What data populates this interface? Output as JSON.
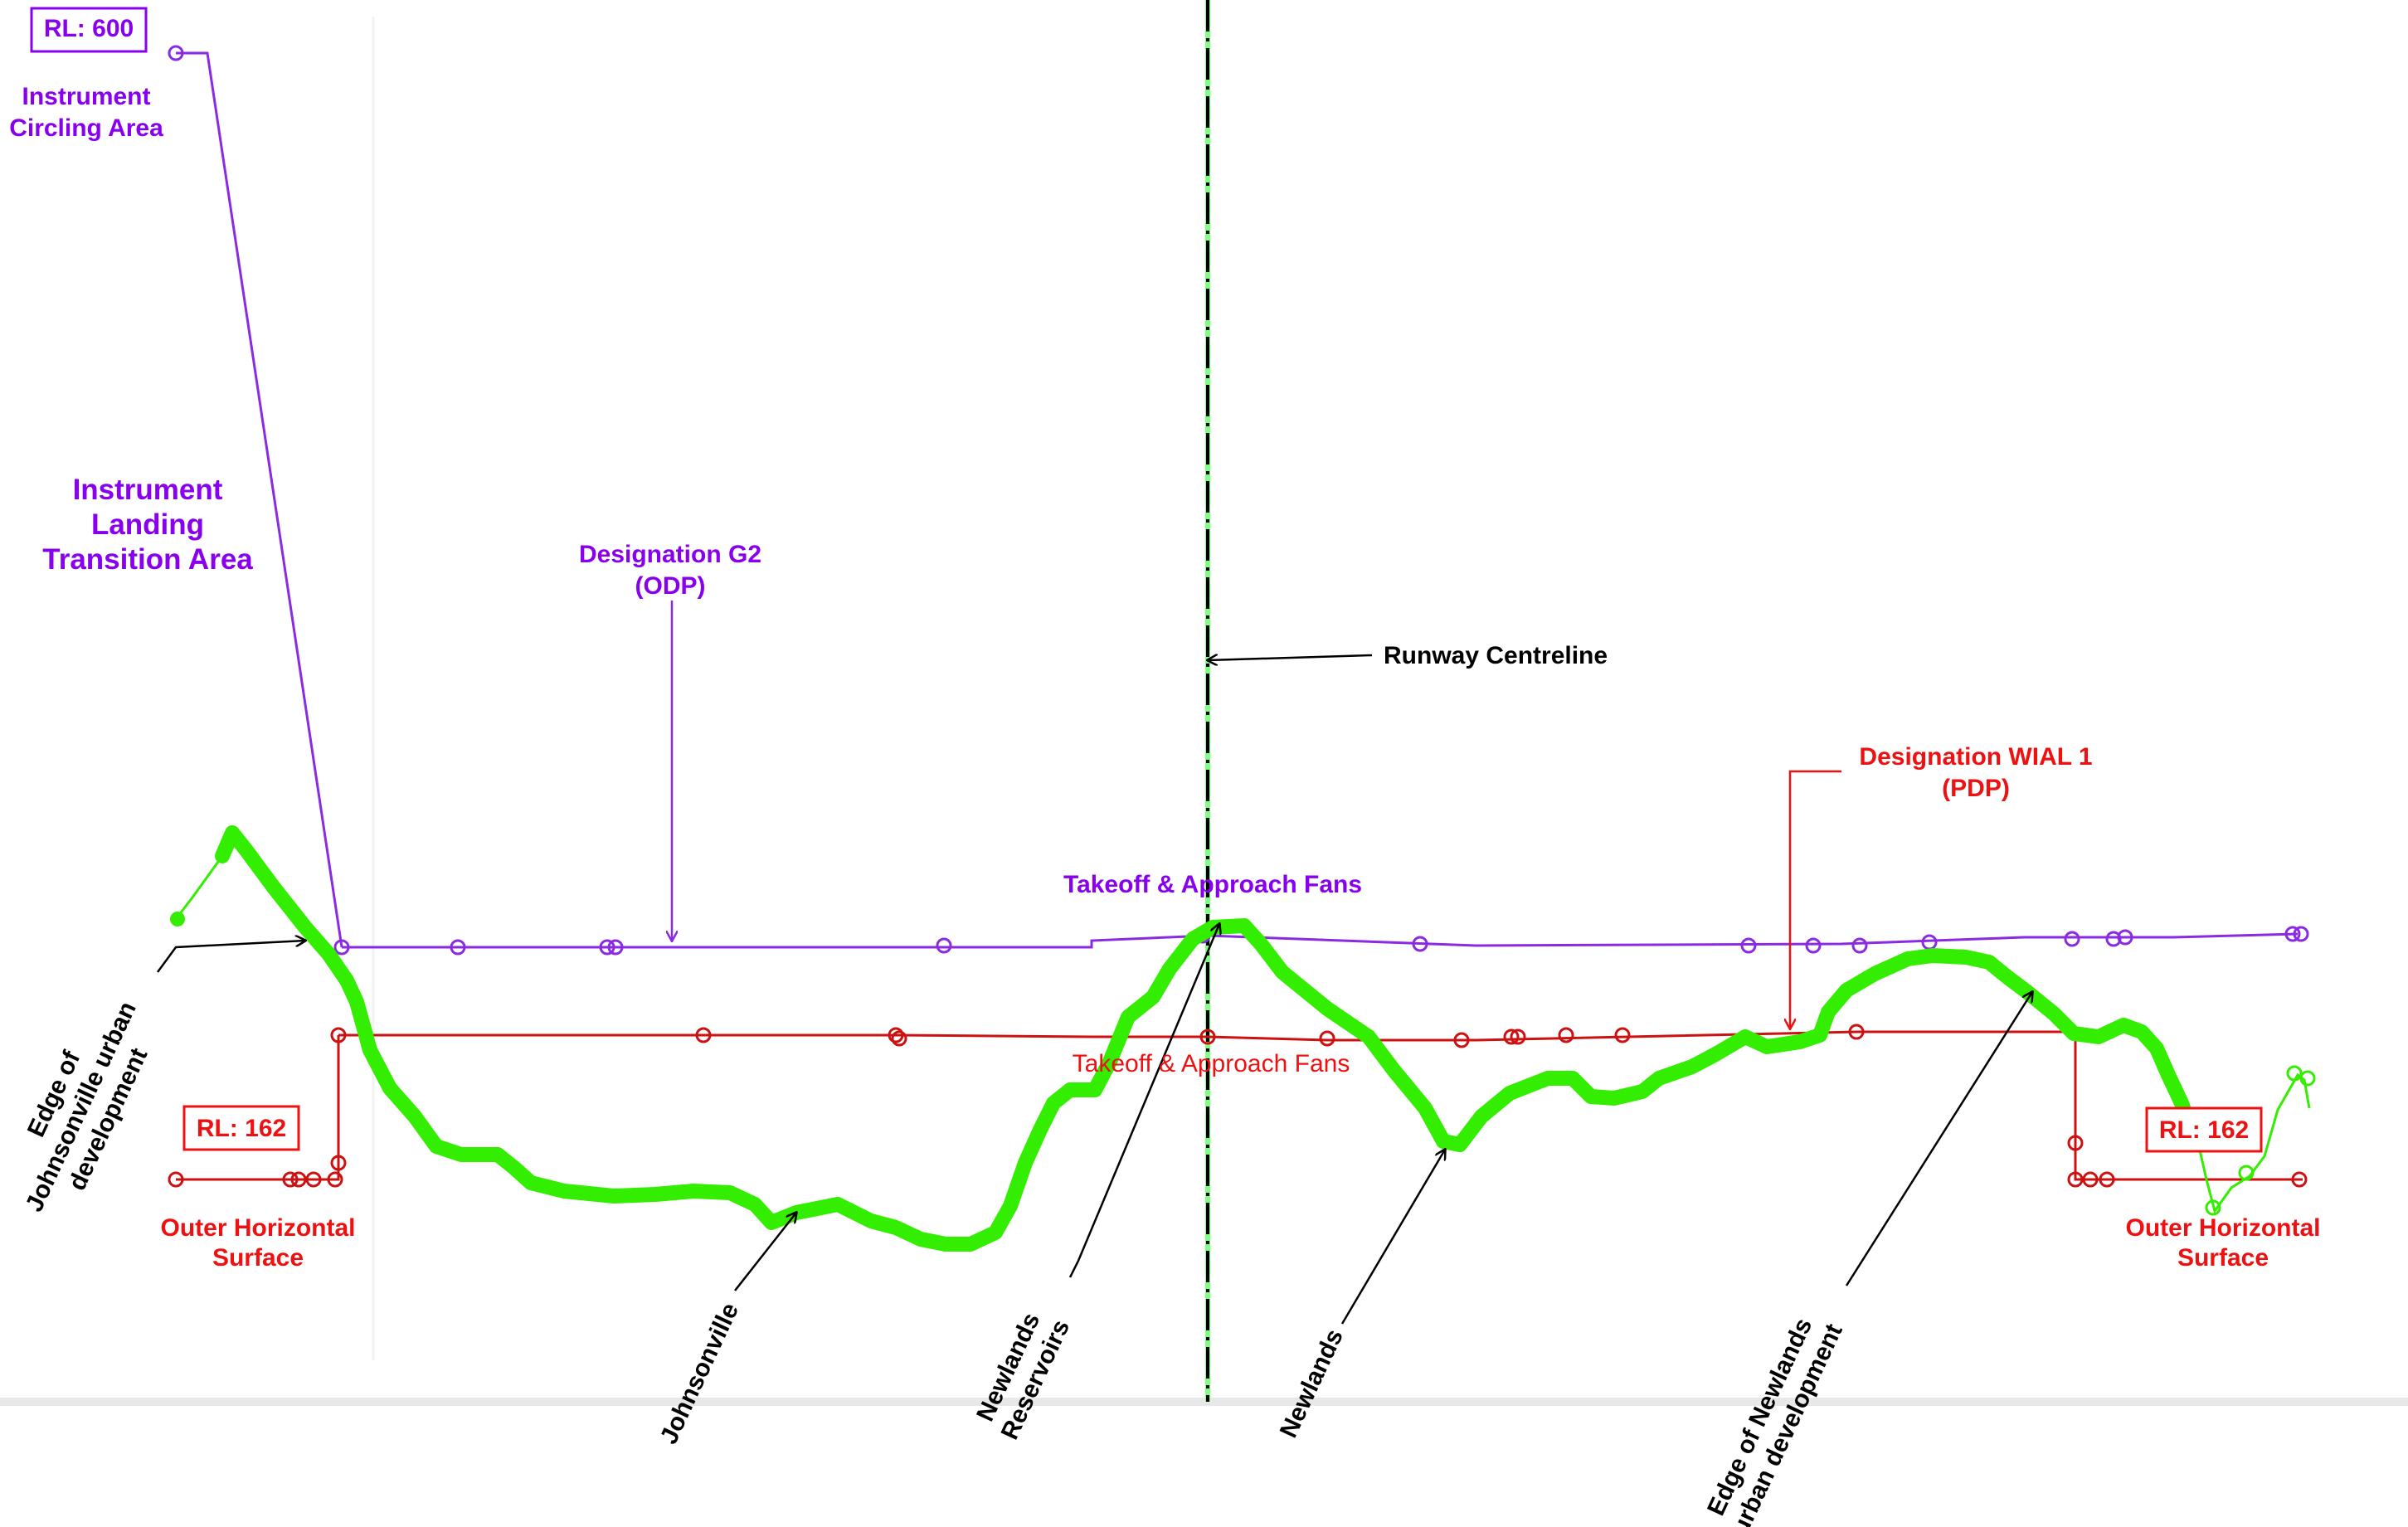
{
  "colors": {
    "purple": "#8800ee",
    "purple_line": "#8a2be2",
    "red": "#ee1111",
    "green": "#33ee00",
    "black": "#000000",
    "centreline_green": "#7fff7f",
    "divider": "#e8e8e8"
  },
  "labels": {
    "rl_600": "RL: 600",
    "instrument_circling_line1": "Instrument",
    "instrument_circling_line2": "Circling Area",
    "ilta_line1": "Instrument",
    "ilta_line2": "Landing",
    "ilta_line3": "Transition Area",
    "g2_line1": "Designation G2",
    "g2_line2": "(ODP)",
    "runway_centreline": "Runway Centreline",
    "wial1_line1": "Designation WIAL 1",
    "wial1_line2": "(PDP)",
    "takeoff_fans_purple": "Takeoff & Approach Fans",
    "takeoff_fans_red": "Takeoff & Approach Fans",
    "rl_162_left": "RL: 162",
    "rl_162_right": "RL: 162",
    "ohs_left_line1": "Outer Horizontal",
    "ohs_left_line2": "Surface",
    "ohs_right_line1": "Outer Horizontal",
    "ohs_right_line2": "Surface",
    "edge_johnsonville_line1": "Edge of",
    "edge_johnsonville_line2": "Johnsonville urban",
    "edge_johnsonville_line3": "development",
    "johnsonville": "Johnsonville",
    "newlands_reservoirs_line1": "Newlands",
    "newlands_reservoirs_line2": "Reservoirs",
    "newlands": "Newlands",
    "edge_newlands_line1": "Edge of Newlands",
    "edge_newlands_line2": "urban development"
  }
}
